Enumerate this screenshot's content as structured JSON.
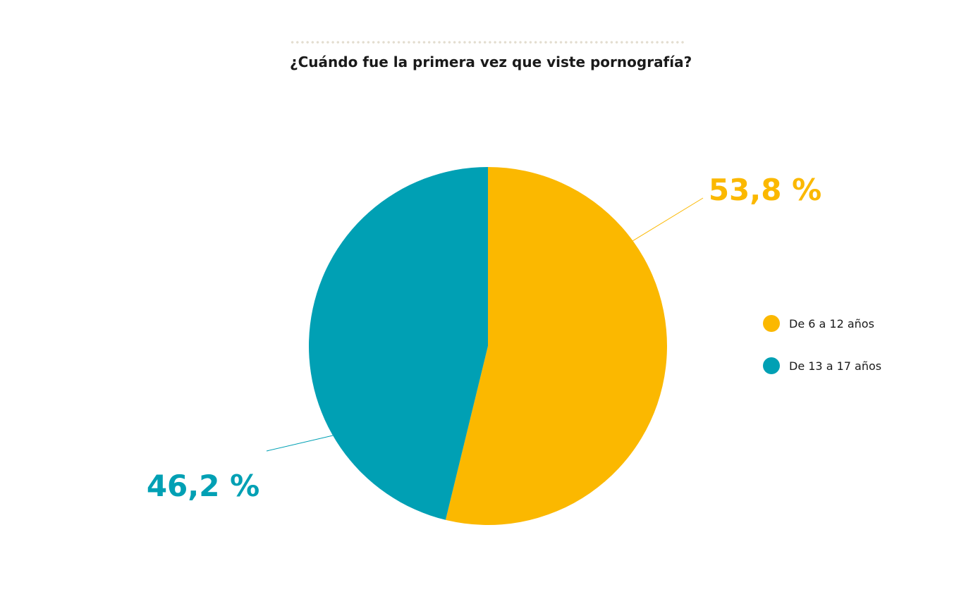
{
  "chart_data": {
    "type": "pie",
    "title": "¿Cuándo fue la primera vez que viste pornografía?",
    "categories": [
      "De 6 a 12 años",
      "De 13 a 17 años"
    ],
    "values": [
      53.8,
      46.2
    ],
    "value_labels": [
      "53,8 %",
      "46,2 %"
    ],
    "colors": [
      "#FBB800",
      "#00A0B4"
    ],
    "legend_position": "right"
  }
}
